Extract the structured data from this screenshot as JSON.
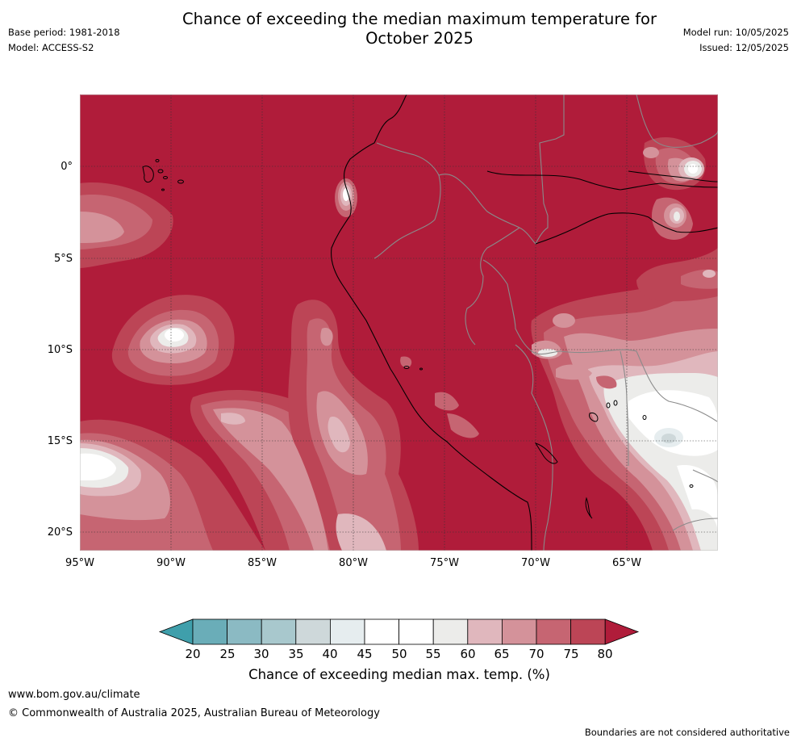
{
  "title": {
    "line1": "Chance of exceeding the median maximum temperature for",
    "line2": "October 2025"
  },
  "meta": {
    "base_period": "Base period: 1981-2018",
    "model": "Model: ACCESS-S2",
    "model_run": "Model run: 10/05/2025",
    "issued": "Issued: 12/05/2025"
  },
  "axes": {
    "lat_labels": [
      "0°",
      "5°S",
      "10°S",
      "15°S",
      "20°S"
    ],
    "lon_labels": [
      "95°W",
      "90°W",
      "85°W",
      "80°W",
      "75°W",
      "70°W",
      "65°W"
    ]
  },
  "colorbar": {
    "label": "Chance of exceeding median max. temp. (%)",
    "ticks": [
      "20",
      "25",
      "30",
      "35",
      "40",
      "45",
      "50",
      "55",
      "60",
      "65",
      "70",
      "75",
      "80"
    ],
    "colors": {
      "below_20": "#3f9fab",
      "20_25": "#6aadb8",
      "25_30": "#8bbac3",
      "30_35": "#a8c8cd",
      "35_40": "#ced8da",
      "40_45": "#e6edef",
      "45_50": "#ffffff",
      "50_55": "#ffffff",
      "55_60": "#ececea",
      "60_65": "#e0b7bd",
      "65_70": "#d4929a",
      "70_75": "#c66572",
      "75_80": "#bc4556",
      "above_80": "#b01c3a"
    }
  },
  "footer": {
    "url": "www.bom.gov.au/climate",
    "copyright": "© Commonwealth of Australia 2025, Australian Bureau of Meteorology",
    "disclaimer": "Boundaries are not considered authoritative"
  }
}
